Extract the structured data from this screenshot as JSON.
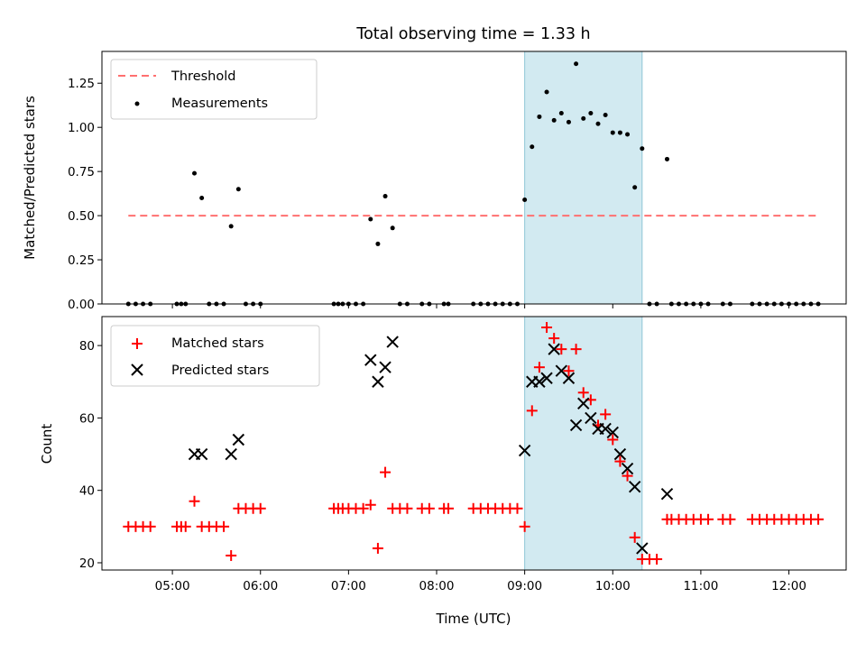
{
  "chart_data": [
    {
      "type": "scatter",
      "title": "Total observing time = 1.33 h",
      "xlabel": "",
      "ylabel": "Matched/Predicted stars",
      "xlim": [
        "04:12",
        "12:39"
      ],
      "ylim": [
        0,
        1.43
      ],
      "yticks": [
        "0.00",
        "0.25",
        "0.50",
        "0.75",
        "1.00",
        "1.25"
      ],
      "legend_position": "upper-left",
      "highlight_band": {
        "x_start": "09:00",
        "x_end": "10:20",
        "color": "#add8e6"
      },
      "threshold": {
        "name": "Threshold",
        "y": 0.5,
        "x_range": [
          "04:30",
          "12:20"
        ],
        "color": "#ff7070",
        "style": "dashed"
      },
      "series": [
        {
          "name": "Measurements",
          "color": "#000000",
          "marker": "dot",
          "points": [
            [
              "04:30",
              0
            ],
            [
              "04:35",
              0
            ],
            [
              "04:40",
              0
            ],
            [
              "04:45",
              0
            ],
            [
              "05:03",
              0
            ],
            [
              "05:06",
              0
            ],
            [
              "05:09",
              0
            ],
            [
              "05:15",
              0.74
            ],
            [
              "05:20",
              0.6
            ],
            [
              "05:25",
              0
            ],
            [
              "05:30",
              0
            ],
            [
              "05:35",
              0
            ],
            [
              "05:40",
              0.44
            ],
            [
              "05:45",
              0.65
            ],
            [
              "05:50",
              0
            ],
            [
              "05:55",
              0
            ],
            [
              "06:00",
              0
            ],
            [
              "06:50",
              0
            ],
            [
              "06:53",
              0
            ],
            [
              "06:56",
              0
            ],
            [
              "07:00",
              0
            ],
            [
              "07:05",
              0
            ],
            [
              "07:10",
              0
            ],
            [
              "07:15",
              0.48
            ],
            [
              "07:20",
              0.34
            ],
            [
              "07:25",
              0.61
            ],
            [
              "07:30",
              0.43
            ],
            [
              "07:35",
              0
            ],
            [
              "07:40",
              0
            ],
            [
              "07:50",
              0
            ],
            [
              "07:55",
              0
            ],
            [
              "08:05",
              0
            ],
            [
              "08:08",
              0
            ],
            [
              "08:25",
              0
            ],
            [
              "08:30",
              0
            ],
            [
              "08:35",
              0
            ],
            [
              "08:40",
              0
            ],
            [
              "08:45",
              0
            ],
            [
              "08:50",
              0
            ],
            [
              "08:55",
              0
            ],
            [
              "09:00",
              0.59
            ],
            [
              "09:05",
              0.89
            ],
            [
              "09:10",
              1.06
            ],
            [
              "09:15",
              1.2
            ],
            [
              "09:20",
              1.04
            ],
            [
              "09:25",
              1.08
            ],
            [
              "09:30",
              1.03
            ],
            [
              "09:35",
              1.36
            ],
            [
              "09:40",
              1.05
            ],
            [
              "09:45",
              1.08
            ],
            [
              "09:50",
              1.02
            ],
            [
              "09:55",
              1.07
            ],
            [
              "10:00",
              0.97
            ],
            [
              "10:05",
              0.97
            ],
            [
              "10:10",
              0.96
            ],
            [
              "10:15",
              0.66
            ],
            [
              "10:20",
              0.88
            ],
            [
              "10:25",
              0
            ],
            [
              "10:30",
              0
            ],
            [
              "10:37",
              0.82
            ],
            [
              "10:40",
              0
            ],
            [
              "10:45",
              0
            ],
            [
              "10:50",
              0
            ],
            [
              "10:55",
              0
            ],
            [
              "11:00",
              0
            ],
            [
              "11:05",
              0
            ],
            [
              "11:15",
              0
            ],
            [
              "11:20",
              0
            ],
            [
              "11:35",
              0
            ],
            [
              "11:40",
              0
            ],
            [
              "11:45",
              0
            ],
            [
              "11:50",
              0
            ],
            [
              "11:55",
              0
            ],
            [
              "12:00",
              0
            ],
            [
              "12:05",
              0
            ],
            [
              "12:10",
              0
            ],
            [
              "12:15",
              0
            ],
            [
              "12:20",
              0
            ]
          ]
        }
      ]
    },
    {
      "type": "scatter",
      "title": "",
      "xlabel": "Time (UTC)",
      "ylabel": "Count",
      "xlim": [
        "04:12",
        "12:39"
      ],
      "ylim": [
        18,
        88
      ],
      "xticks": [
        "05:00",
        "06:00",
        "07:00",
        "08:00",
        "09:00",
        "10:00",
        "11:00",
        "12:00"
      ],
      "yticks": [
        "20",
        "40",
        "60",
        "80"
      ],
      "legend_position": "upper-left",
      "highlight_band": {
        "x_start": "09:00",
        "x_end": "10:20",
        "color": "#add8e6"
      },
      "series": [
        {
          "name": "Matched stars",
          "color": "#ff0000",
          "marker": "plus",
          "points": [
            [
              "04:30",
              30
            ],
            [
              "04:35",
              30
            ],
            [
              "04:40",
              30
            ],
            [
              "04:45",
              30
            ],
            [
              "05:03",
              30
            ],
            [
              "05:06",
              30
            ],
            [
              "05:09",
              30
            ],
            [
              "05:15",
              37
            ],
            [
              "05:20",
              30
            ],
            [
              "05:25",
              30
            ],
            [
              "05:30",
              30
            ],
            [
              "05:35",
              30
            ],
            [
              "05:40",
              22
            ],
            [
              "05:45",
              35
            ],
            [
              "05:50",
              35
            ],
            [
              "05:55",
              35
            ],
            [
              "06:00",
              35
            ],
            [
              "06:50",
              35
            ],
            [
              "06:53",
              35
            ],
            [
              "06:56",
              35
            ],
            [
              "07:00",
              35
            ],
            [
              "07:05",
              35
            ],
            [
              "07:10",
              35
            ],
            [
              "07:15",
              36
            ],
            [
              "07:20",
              24
            ],
            [
              "07:25",
              45
            ],
            [
              "07:30",
              35
            ],
            [
              "07:35",
              35
            ],
            [
              "07:40",
              35
            ],
            [
              "07:50",
              35
            ],
            [
              "07:55",
              35
            ],
            [
              "08:05",
              35
            ],
            [
              "08:08",
              35
            ],
            [
              "08:25",
              35
            ],
            [
              "08:30",
              35
            ],
            [
              "08:35",
              35
            ],
            [
              "08:40",
              35
            ],
            [
              "08:45",
              35
            ],
            [
              "08:50",
              35
            ],
            [
              "08:55",
              35
            ],
            [
              "09:00",
              30
            ],
            [
              "09:05",
              62
            ],
            [
              "09:10",
              74
            ],
            [
              "09:15",
              85
            ],
            [
              "09:20",
              82
            ],
            [
              "09:25",
              79
            ],
            [
              "09:30",
              73
            ],
            [
              "09:35",
              79
            ],
            [
              "09:40",
              67
            ],
            [
              "09:45",
              65
            ],
            [
              "09:50",
              58
            ],
            [
              "09:55",
              61
            ],
            [
              "10:00",
              54
            ],
            [
              "10:05",
              48
            ],
            [
              "10:10",
              44
            ],
            [
              "10:15",
              27
            ],
            [
              "10:20",
              21
            ],
            [
              "10:25",
              21
            ],
            [
              "10:30",
              21
            ],
            [
              "10:37",
              32
            ],
            [
              "10:40",
              32
            ],
            [
              "10:45",
              32
            ],
            [
              "10:50",
              32
            ],
            [
              "10:55",
              32
            ],
            [
              "11:00",
              32
            ],
            [
              "11:05",
              32
            ],
            [
              "11:15",
              32
            ],
            [
              "11:20",
              32
            ],
            [
              "11:35",
              32
            ],
            [
              "11:40",
              32
            ],
            [
              "11:45",
              32
            ],
            [
              "11:50",
              32
            ],
            [
              "11:55",
              32
            ],
            [
              "12:00",
              32
            ],
            [
              "12:05",
              32
            ],
            [
              "12:10",
              32
            ],
            [
              "12:15",
              32
            ],
            [
              "12:20",
              32
            ]
          ]
        },
        {
          "name": "Predicted stars",
          "color": "#000000",
          "marker": "x",
          "points": [
            [
              "05:15",
              50
            ],
            [
              "05:20",
              50
            ],
            [
              "05:40",
              50
            ],
            [
              "05:45",
              54
            ],
            [
              "07:15",
              76
            ],
            [
              "07:20",
              70
            ],
            [
              "07:25",
              74
            ],
            [
              "07:30",
              81
            ],
            [
              "09:00",
              51
            ],
            [
              "09:05",
              70
            ],
            [
              "09:10",
              70
            ],
            [
              "09:15",
              71
            ],
            [
              "09:20",
              79
            ],
            [
              "09:25",
              73
            ],
            [
              "09:30",
              71
            ],
            [
              "09:35",
              58
            ],
            [
              "09:40",
              64
            ],
            [
              "09:45",
              60
            ],
            [
              "09:50",
              57
            ],
            [
              "09:55",
              57
            ],
            [
              "10:00",
              56
            ],
            [
              "10:05",
              50
            ],
            [
              "10:10",
              46
            ],
            [
              "10:15",
              41
            ],
            [
              "10:20",
              24
            ],
            [
              "10:37",
              39
            ]
          ]
        }
      ]
    }
  ]
}
